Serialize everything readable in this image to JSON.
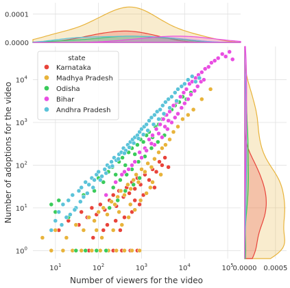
{
  "chart_data": {
    "type": "scatter",
    "xlabel": "Number of viewers for the video",
    "ylabel": "Number of adoptions for the video",
    "xscale": "log",
    "yscale": "log",
    "xlim": [
      3,
      200000
    ],
    "ylim": [
      0.65,
      60000
    ],
    "grid": true,
    "x_ticks": [
      {
        "value": 10,
        "label": "10",
        "exp": "1"
      },
      {
        "value": 100,
        "label": "10",
        "exp": "2"
      },
      {
        "value": 1000,
        "label": "10",
        "exp": "3"
      },
      {
        "value": 10000,
        "label": "10",
        "exp": "4"
      },
      {
        "value": 100000,
        "label": "10",
        "exp": "5"
      }
    ],
    "y_ticks": [
      {
        "value": 1,
        "label": "10",
        "exp": "0"
      },
      {
        "value": 10,
        "label": "10",
        "exp": "1"
      },
      {
        "value": 100,
        "label": "10",
        "exp": "2"
      },
      {
        "value": 1000,
        "label": "10",
        "exp": "3"
      },
      {
        "value": 10000,
        "label": "10",
        "exp": "4"
      }
    ],
    "legend": {
      "title": "state",
      "placement": "top-left"
    },
    "series": [
      {
        "name": "Karnataka",
        "color": "#e8433a",
        "points": [
          [
            60,
            1
          ],
          [
            90,
            1
          ],
          [
            150,
            1
          ],
          [
            220,
            1
          ],
          [
            350,
            1
          ],
          [
            550,
            1
          ],
          [
            800,
            1
          ],
          [
            12,
            3
          ],
          [
            20,
            5
          ],
          [
            35,
            4
          ],
          [
            40,
            8
          ],
          [
            55,
            6
          ],
          [
            70,
            10
          ],
          [
            90,
            7
          ],
          [
            110,
            12
          ],
          [
            140,
            9
          ],
          [
            180,
            15
          ],
          [
            220,
            20
          ],
          [
            260,
            11
          ],
          [
            300,
            25
          ],
          [
            380,
            18
          ],
          [
            450,
            30
          ],
          [
            520,
            22
          ],
          [
            600,
            40
          ],
          [
            700,
            28
          ],
          [
            800,
            50
          ],
          [
            950,
            35
          ],
          [
            1200,
            60
          ],
          [
            1500,
            45
          ],
          [
            1800,
            80
          ],
          [
            2200,
            70
          ],
          [
            2600,
            120
          ],
          [
            3000,
            100
          ],
          [
            3500,
            150
          ],
          [
            4200,
            90
          ],
          [
            130,
            3
          ],
          [
            250,
            5
          ],
          [
            400,
            6
          ],
          [
            600,
            8
          ],
          [
            900,
            12
          ],
          [
            1100,
            20
          ],
          [
            75,
            2
          ],
          [
            160,
            4
          ],
          [
            320,
            3
          ],
          [
            700,
            15
          ],
          [
            2000,
            30
          ]
        ]
      },
      {
        "name": "Madhya Pradesh",
        "color": "#e8b33a",
        "points": [
          [
            5,
            2
          ],
          [
            8,
            1
          ],
          [
            15,
            1
          ],
          [
            25,
            1
          ],
          [
            40,
            1
          ],
          [
            70,
            1
          ],
          [
            110,
            1
          ],
          [
            170,
            1
          ],
          [
            260,
            1
          ],
          [
            400,
            1
          ],
          [
            600,
            1
          ],
          [
            900,
            1
          ],
          [
            10,
            3
          ],
          [
            18,
            2
          ],
          [
            30,
            4
          ],
          [
            45,
            3
          ],
          [
            60,
            6
          ],
          [
            80,
            5
          ],
          [
            100,
            8
          ],
          [
            130,
            10
          ],
          [
            160,
            7
          ],
          [
            200,
            14
          ],
          [
            240,
            12
          ],
          [
            280,
            18
          ],
          [
            330,
            25
          ],
          [
            400,
            20
          ],
          [
            480,
            35
          ],
          [
            560,
            28
          ],
          [
            650,
            45
          ],
          [
            750,
            60
          ],
          [
            850,
            40
          ],
          [
            1000,
            80
          ],
          [
            1200,
            70
          ],
          [
            1400,
            110
          ],
          [
            1700,
            90
          ],
          [
            2000,
            140
          ],
          [
            2500,
            200
          ],
          [
            3000,
            250
          ],
          [
            3600,
            300
          ],
          [
            4500,
            400
          ],
          [
            5500,
            600
          ],
          [
            7000,
            800
          ],
          [
            9000,
            1200
          ],
          [
            12000,
            1500
          ],
          [
            16000,
            2000
          ],
          [
            25000,
            3500
          ],
          [
            40000,
            6000
          ],
          [
            120,
            2
          ],
          [
            220,
            3
          ],
          [
            350,
            4
          ],
          [
            500,
            6
          ],
          [
            700,
            9
          ],
          [
            950,
            15
          ],
          [
            1300,
            22
          ],
          [
            1800,
            40
          ],
          [
            90,
            3
          ],
          [
            300,
            8
          ],
          [
            550,
            12
          ],
          [
            1600,
            30
          ],
          [
            2800,
            60
          ]
        ]
      },
      {
        "name": "Odisha",
        "color": "#3acb5a",
        "points": [
          [
            8,
            12
          ],
          [
            10,
            8
          ],
          [
            12,
            15
          ],
          [
            30,
            1
          ],
          [
            50,
            1
          ],
          [
            90,
            1
          ],
          [
            150,
            1
          ],
          [
            20,
            6
          ],
          [
            30,
            10
          ],
          [
            45,
            20
          ],
          [
            60,
            35
          ],
          [
            80,
            25
          ],
          [
            100,
            50
          ],
          [
            130,
            40
          ],
          [
            170,
            70
          ],
          [
            210,
            90
          ],
          [
            250,
            60
          ],
          [
            300,
            120
          ],
          [
            360,
            150
          ],
          [
            420,
            100
          ],
          [
            500,
            200
          ],
          [
            600,
            250
          ],
          [
            700,
            180
          ],
          [
            800,
            300
          ],
          [
            950,
            400
          ],
          [
            1100,
            350
          ],
          [
            1300,
            500
          ],
          [
            1500,
            600
          ],
          [
            1800,
            450
          ],
          [
            2100,
            800
          ],
          [
            2500,
            900
          ],
          [
            3000,
            1200
          ],
          [
            3600,
            1500
          ],
          [
            4300,
            1100
          ],
          [
            5000,
            2000
          ],
          [
            6000,
            2500
          ],
          [
            7500,
            3000
          ],
          [
            9000,
            4000
          ],
          [
            11000,
            3500
          ],
          [
            14000,
            5000
          ],
          [
            150,
            20
          ],
          [
            220,
            30
          ],
          [
            320,
            45
          ],
          [
            450,
            60
          ],
          [
            600,
            80
          ],
          [
            850,
            120
          ],
          [
            1200,
            160
          ],
          [
            1700,
            250
          ],
          [
            2400,
            350
          ],
          [
            3400,
            500
          ],
          [
            180,
            10
          ],
          [
            280,
            15
          ],
          [
            420,
            25
          ],
          [
            650,
            35
          ],
          [
            900,
            50
          ]
        ]
      },
      {
        "name": "Bihar",
        "color": "#e94ee2",
        "points": [
          [
            150,
            20
          ],
          [
            250,
            40
          ],
          [
            350,
            60
          ],
          [
            500,
            80
          ],
          [
            700,
            120
          ],
          [
            900,
            200
          ],
          [
            1200,
            250
          ],
          [
            1500,
            400
          ],
          [
            1800,
            500
          ],
          [
            2200,
            700
          ],
          [
            2700,
            900
          ],
          [
            3200,
            1200
          ],
          [
            3800,
            1500
          ],
          [
            4500,
            1800
          ],
          [
            5500,
            2500
          ],
          [
            6500,
            3000
          ],
          [
            8000,
            4000
          ],
          [
            9500,
            5000
          ],
          [
            11000,
            6000
          ],
          [
            13000,
            8000
          ],
          [
            15000,
            9000
          ],
          [
            18000,
            11000
          ],
          [
            21000,
            13000
          ],
          [
            25000,
            15000
          ],
          [
            30000,
            18000
          ],
          [
            36000,
            20000
          ],
          [
            42000,
            25000
          ],
          [
            50000,
            28000
          ],
          [
            60000,
            32000
          ],
          [
            75000,
            40000
          ],
          [
            90000,
            35000
          ],
          [
            110000,
            45000
          ],
          [
            130000,
            30000
          ],
          [
            2000,
            300
          ],
          [
            3000,
            450
          ],
          [
            4000,
            700
          ],
          [
            5000,
            1000
          ],
          [
            6000,
            1300
          ],
          [
            7000,
            1600
          ],
          [
            8500,
            2200
          ],
          [
            10000,
            2800
          ],
          [
            12000,
            3500
          ],
          [
            14000,
            4500
          ],
          [
            17000,
            5500
          ],
          [
            20000,
            7000
          ],
          [
            24000,
            9000
          ],
          [
            28000,
            10000
          ],
          [
            1000,
            150
          ],
          [
            1300,
            220
          ],
          [
            1700,
            320
          ],
          [
            2500,
            550
          ],
          [
            3500,
            800
          ],
          [
            4200,
            1100
          ],
          [
            600,
            100
          ],
          [
            400,
            70
          ]
        ]
      },
      {
        "name": "Andhra Pradesh",
        "color": "#5bc3d9",
        "points": [
          [
            10,
            5
          ],
          [
            12,
            8
          ],
          [
            15,
            12
          ],
          [
            18,
            6
          ],
          [
            20,
            15
          ],
          [
            25,
            20
          ],
          [
            30,
            10
          ],
          [
            35,
            25
          ],
          [
            40,
            30
          ],
          [
            45,
            18
          ],
          [
            50,
            40
          ],
          [
            60,
            35
          ],
          [
            70,
            50
          ],
          [
            80,
            45
          ],
          [
            90,
            60
          ],
          [
            100,
            70
          ],
          [
            120,
            55
          ],
          [
            140,
            80
          ],
          [
            160,
            100
          ],
          [
            180,
            90
          ],
          [
            200,
            120
          ],
          [
            230,
            150
          ],
          [
            260,
            130
          ],
          [
            300,
            180
          ],
          [
            340,
            200
          ],
          [
            380,
            250
          ],
          [
            430,
            220
          ],
          [
            480,
            300
          ],
          [
            550,
            350
          ],
          [
            620,
            400
          ],
          [
            700,
            450
          ],
          [
            800,
            500
          ],
          [
            900,
            600
          ],
          [
            1000,
            700
          ],
          [
            1150,
            800
          ],
          [
            1300,
            900
          ],
          [
            1500,
            1100
          ],
          [
            1700,
            1300
          ],
          [
            2000,
            1500
          ],
          [
            2300,
            1800
          ],
          [
            2700,
            2000
          ],
          [
            3100,
            2500
          ],
          [
            3600,
            3000
          ],
          [
            4200,
            3500
          ],
          [
            5000,
            4000
          ],
          [
            6000,
            5000
          ],
          [
            7000,
            6000
          ],
          [
            8500,
            7000
          ],
          [
            10000,
            8000
          ],
          [
            12000,
            10000
          ],
          [
            15000,
            12000
          ],
          [
            18000,
            9000
          ],
          [
            22000,
            11000
          ],
          [
            8,
            3
          ],
          [
            14,
            4
          ],
          [
            22,
            7
          ],
          [
            28,
            9
          ],
          [
            38,
            14
          ],
          [
            55,
            22
          ],
          [
            75,
            30
          ],
          [
            110,
            45
          ],
          [
            150,
            65
          ],
          [
            210,
            95
          ],
          [
            290,
            140
          ],
          [
            400,
            190
          ],
          [
            520,
            260
          ],
          [
            660,
            330
          ],
          [
            850,
            420
          ],
          [
            1100,
            520
          ],
          [
            1400,
            650
          ],
          [
            1900,
            900
          ],
          [
            2500,
            1200
          ],
          [
            3300,
            1600
          ],
          [
            4500,
            2200
          ],
          [
            6500,
            3200
          ]
        ]
      }
    ]
  },
  "top_marginal": {
    "y_ticks": [
      {
        "value": 0.0,
        "label": "0.0000"
      },
      {
        "value": 0.0001,
        "label": "0.0001"
      }
    ],
    "ylim": [
      0,
      0.00014
    ]
  },
  "right_marginal": {
    "x_ticks": [
      {
        "value": 0.0,
        "label": "0.0000"
      },
      {
        "value": 0.0005,
        "label": "0.0005"
      }
    ],
    "xlim": [
      0,
      0.00068
    ]
  }
}
